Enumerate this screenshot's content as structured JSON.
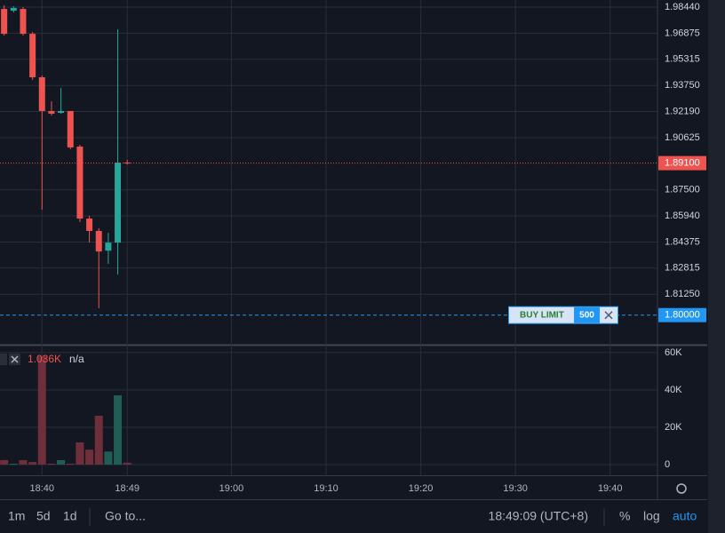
{
  "chart_data": [
    {
      "type": "candlestick",
      "x": [
        "18:36",
        "18:37",
        "18:38",
        "18:39",
        "18:40",
        "18:41",
        "18:42",
        "18:43",
        "18:44",
        "18:45",
        "18:46",
        "18:47",
        "18:48",
        "18:49"
      ],
      "open": [
        1.9833,
        1.9823,
        1.9833,
        1.9684,
        1.9424,
        1.9222,
        1.9211,
        1.9222,
        1.9009,
        1.8578,
        1.8504,
        1.8386,
        1.8434,
        1.8913
      ],
      "high": [
        1.9855,
        1.9849,
        1.9844,
        1.9695,
        1.9434,
        1.928,
        1.936,
        1.9222,
        1.902,
        1.8594,
        1.852,
        1.8493,
        1.9711,
        1.8929
      ],
      "low": [
        1.9674,
        1.9812,
        1.9674,
        1.9408,
        1.8631,
        1.9195,
        1.9206,
        1.8993,
        1.8557,
        1.8434,
        1.8041,
        1.8307,
        1.8243,
        1.8902
      ],
      "close": [
        1.9684,
        1.9839,
        1.9684,
        1.9424,
        1.9222,
        1.9206,
        1.9222,
        1.9004,
        1.8578,
        1.8504,
        1.8381,
        1.8434,
        1.8913,
        1.891
      ],
      "up_color": "#26a69a",
      "down_color": "#ef5350",
      "xlim": [
        "18:35",
        "19:45"
      ],
      "xticks": [
        "18:40",
        "18:49",
        "19:00",
        "19:10",
        "19:20",
        "19:30",
        "19:40"
      ],
      "ylim": [
        1.7823,
        1.98866
      ],
      "yticks": [
        {
          "value": 1.9844,
          "label": "1.98440"
        },
        {
          "value": 1.96875,
          "label": "1.96875"
        },
        {
          "value": 1.95315,
          "label": "1.95315"
        },
        {
          "value": 1.9375,
          "label": "1.93750"
        },
        {
          "value": 1.9219,
          "label": "1.92190"
        },
        {
          "value": 1.90625,
          "label": "1.90625"
        },
        {
          "value": 1.875,
          "label": "1.87500"
        },
        {
          "value": 1.8594,
          "label": "1.85940"
        },
        {
          "value": 1.84375,
          "label": "1.84375"
        },
        {
          "value": 1.82815,
          "label": "1.82815"
        },
        {
          "value": 1.8125,
          "label": "1.81250"
        }
      ],
      "grid": true,
      "last_price": {
        "value": 1.891,
        "label": "1.89100"
      },
      "order": {
        "side": "BUY LIMIT",
        "quantity": 500,
        "price": {
          "value": 1.8,
          "label": "1.80000"
        }
      }
    },
    {
      "type": "bar",
      "values": [
        2400,
        500,
        2400,
        1400,
        58000,
        500,
        2400,
        500,
        11900,
        8000,
        26200,
        7000,
        37100,
        1036
      ],
      "value_labels": [
        null,
        null,
        null,
        null,
        null,
        null,
        null,
        null,
        null,
        null,
        null,
        null,
        null,
        "1.036K"
      ],
      "extra_label": "n/a",
      "up_color": "#225d55",
      "down_color": "#6e2f3a",
      "ylim": [
        -5700,
        63300
      ],
      "yticks": [
        {
          "value": 60000,
          "label": "60K"
        },
        {
          "value": 40000,
          "label": "40K"
        },
        {
          "value": 20000,
          "label": "20K"
        },
        0
      ]
    }
  ],
  "toolbar": {
    "ranges": [
      "1m",
      "5d",
      "1d"
    ],
    "goto": "Go to...",
    "clock": "18:49:09 (UTC+8)",
    "options": [
      "%",
      "log",
      "auto"
    ]
  }
}
